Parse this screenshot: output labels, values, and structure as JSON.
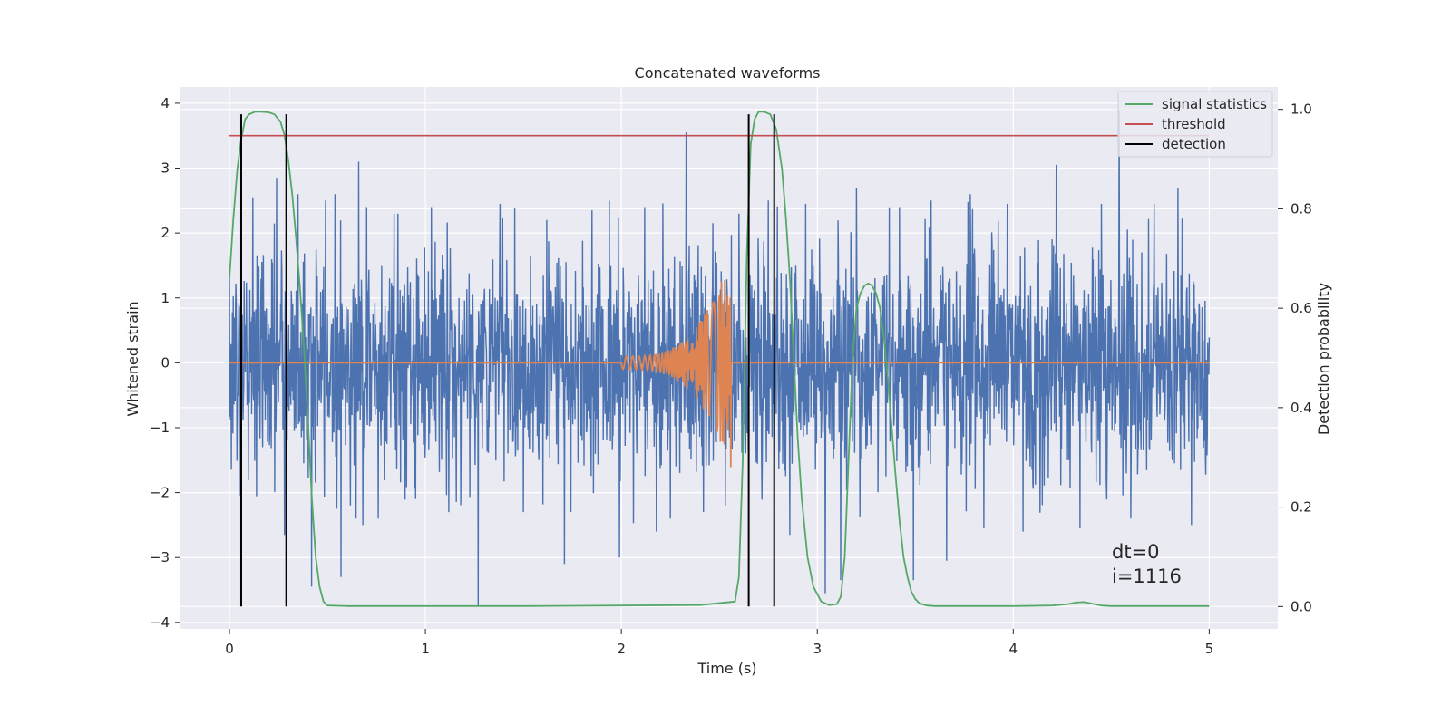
{
  "chart_data": {
    "type": "line",
    "title": "Concatenated waveforms",
    "xlabel": "Time (s)",
    "ylabel": "Whitened strain",
    "ylabel_right": "Detection probability",
    "xlim": [
      -0.25,
      5.35
    ],
    "ylim": [
      -4.1,
      4.25
    ],
    "ylim_right": [
      -0.045,
      1.045
    ],
    "x_ticks": [
      0,
      1,
      2,
      3,
      4,
      5
    ],
    "y_ticks": [
      -4,
      -3,
      -2,
      -1,
      0,
      1,
      2,
      3,
      4
    ],
    "y_ticks_right": [
      0.0,
      0.2,
      0.4,
      0.6,
      0.8,
      1.0
    ],
    "x_tick_labels": [
      "0",
      "1",
      "2",
      "3",
      "4",
      "5"
    ],
    "y_tick_labels": [
      "−4",
      "−3",
      "−2",
      "−1",
      "0",
      "1",
      "2",
      "3",
      "4"
    ],
    "y_tick_labels_right": [
      "0.0",
      "0.2",
      "0.4",
      "0.6",
      "0.8",
      "1.0"
    ],
    "grid": true,
    "background": "#eaeaf2",
    "legend_position": "top-right",
    "legend": [
      {
        "label": "signal statistics",
        "color": "#55a868"
      },
      {
        "label": "threshold",
        "color": "#c44e52"
      },
      {
        "label": "detection",
        "color": "#000000"
      }
    ],
    "series": [
      {
        "kind": "noise",
        "color": "#4c72b0",
        "x_range": [
          0,
          5
        ],
        "approx_std": 0.85,
        "peaks": [
          [
            0.0,
            1.3
          ],
          [
            0.05,
            -2.05
          ],
          [
            0.12,
            2.55
          ],
          [
            0.17,
            -1.3
          ],
          [
            0.24,
            2.85
          ],
          [
            0.28,
            -2.65
          ],
          [
            0.35,
            2.6
          ],
          [
            0.42,
            -3.45
          ],
          [
            0.49,
            2.5
          ],
          [
            0.57,
            -3.3
          ],
          [
            0.66,
            3.1
          ],
          [
            0.68,
            -2.5
          ],
          [
            0.7,
            2.4
          ],
          [
            0.76,
            -2.4
          ],
          [
            0.86,
            2.3
          ],
          [
            0.95,
            -2.1
          ],
          [
            1.03,
            2.4
          ],
          [
            1.12,
            -2.3
          ],
          [
            1.27,
            -3.75
          ],
          [
            1.38,
            2.45
          ],
          [
            1.5,
            -2.3
          ],
          [
            1.62,
            2.2
          ],
          [
            1.71,
            -3.1
          ],
          [
            1.85,
            2.35
          ],
          [
            1.99,
            -3.0
          ],
          [
            2.12,
            2.4
          ],
          [
            2.25,
            -2.4
          ],
          [
            2.33,
            3.55
          ],
          [
            2.42,
            -2.3
          ],
          [
            2.53,
            -2.2
          ],
          [
            2.6,
            2.3
          ],
          [
            2.75,
            2.5
          ],
          [
            2.86,
            -2.65
          ],
          [
            2.94,
            2.45
          ],
          [
            3.04,
            -3.55
          ],
          [
            3.12,
            -3.35
          ],
          [
            3.2,
            2.7
          ],
          [
            3.42,
            2.4
          ],
          [
            3.49,
            -3.35
          ],
          [
            3.58,
            2.5
          ],
          [
            3.66,
            -3.05
          ],
          [
            3.78,
            2.6
          ],
          [
            3.85,
            -2.55
          ],
          [
            3.97,
            2.45
          ],
          [
            4.05,
            -2.6
          ],
          [
            4.22,
            3.05
          ],
          [
            4.34,
            -2.55
          ],
          [
            4.45,
            2.45
          ],
          [
            4.54,
            3.9
          ],
          [
            4.6,
            -2.4
          ],
          [
            4.72,
            2.45
          ],
          [
            4.84,
            2.7
          ],
          [
            4.91,
            -2.5
          ],
          [
            4.99,
            -1.1
          ]
        ]
      },
      {
        "kind": "chirp",
        "color": "#dd8452",
        "x_range": [
          0,
          5
        ],
        "chirp_start": 2.0,
        "chirp_end": 2.56,
        "peak_amplitude": 1.65,
        "min_amplitude": -1.7
      },
      {
        "name": "signal statistics",
        "axis": "right",
        "color": "#55a868",
        "x": [
          0.0,
          0.02,
          0.04,
          0.06,
          0.08,
          0.1,
          0.13,
          0.16,
          0.2,
          0.23,
          0.26,
          0.28,
          0.3,
          0.32,
          0.34,
          0.36,
          0.38,
          0.4,
          0.42,
          0.44,
          0.46,
          0.48,
          0.5,
          0.6,
          1.0,
          1.5,
          2.0,
          2.4,
          2.58,
          2.6,
          2.62,
          2.64,
          2.66,
          2.68,
          2.7,
          2.73,
          2.76,
          2.79,
          2.82,
          2.84,
          2.86,
          2.88,
          2.9,
          2.92,
          2.95,
          2.98,
          3.02,
          3.06,
          3.1,
          3.12,
          3.14,
          3.16,
          3.18,
          3.2,
          3.22,
          3.24,
          3.26,
          3.28,
          3.3,
          3.32,
          3.34,
          3.36,
          3.38,
          3.4,
          3.42,
          3.44,
          3.46,
          3.48,
          3.5,
          3.52,
          3.54,
          3.56,
          3.6,
          3.7,
          4.0,
          4.2,
          4.28,
          4.32,
          4.36,
          4.4,
          4.45,
          4.5,
          5.0
        ],
        "y": [
          0.66,
          0.78,
          0.88,
          0.94,
          0.98,
          0.99,
          0.995,
          0.995,
          0.994,
          0.99,
          0.975,
          0.95,
          0.9,
          0.83,
          0.74,
          0.64,
          0.52,
          0.38,
          0.22,
          0.1,
          0.04,
          0.01,
          0.002,
          0.001,
          0.001,
          0.001,
          0.002,
          0.003,
          0.01,
          0.06,
          0.3,
          0.7,
          0.93,
          0.98,
          0.995,
          0.995,
          0.99,
          0.96,
          0.88,
          0.78,
          0.66,
          0.5,
          0.34,
          0.22,
          0.1,
          0.04,
          0.01,
          0.003,
          0.005,
          0.02,
          0.1,
          0.3,
          0.5,
          0.6,
          0.63,
          0.645,
          0.65,
          0.645,
          0.63,
          0.6,
          0.54,
          0.46,
          0.36,
          0.26,
          0.17,
          0.1,
          0.06,
          0.03,
          0.015,
          0.007,
          0.004,
          0.002,
          0.001,
          0.001,
          0.001,
          0.002,
          0.005,
          0.008,
          0.009,
          0.006,
          0.002,
          0.001,
          0.001
        ]
      },
      {
        "name": "threshold",
        "axis": "left",
        "color": "#c44e52",
        "x": [
          0,
          5
        ],
        "y": [
          3.5,
          3.5
        ]
      },
      {
        "name": "detection",
        "axis": "right",
        "color": "#000000",
        "kind": "vlines",
        "x": [
          0.06,
          0.29,
          2.65,
          2.78
        ],
        "y_from": 0.0,
        "y_to": 0.99
      }
    ],
    "annotations": [
      "dt=0",
      "i=1116"
    ]
  }
}
